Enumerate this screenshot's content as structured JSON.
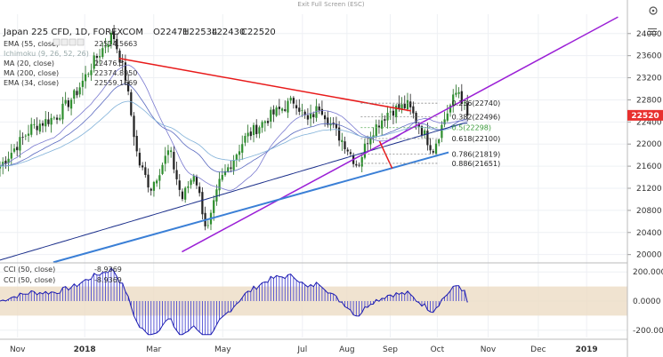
{
  "window": {
    "exit_fullscreen": "Exit Full Screen (ESC)"
  },
  "header": {
    "symbol": "Japan 225 CFD, 1D, FOREXCOM",
    "open": "O22471",
    "high": "H22534",
    "low": "L22430",
    "close": "C22520"
  },
  "legend": [
    {
      "label": "EMA (55, close)",
      "value": "22514.5663"
    },
    {
      "label": "Ichimoku (9, 26, 52, 26)",
      "value": ""
    },
    {
      "label": "MA (20, close)",
      "value": "22476.5"
    },
    {
      "label": "MA (200, close)",
      "value": "22374.8950"
    },
    {
      "label": "EMA (34, close)",
      "value": "22559.1669"
    }
  ],
  "cci_legend": [
    {
      "label": "CCI (50, close)",
      "value": "-8.9369"
    },
    {
      "label": "CCI (50, close)",
      "value": "-8.9369"
    }
  ],
  "price_badge": {
    "value": "22520",
    "color": "#e8302e"
  },
  "fib_labels": [
    {
      "text": "0.236(22740)",
      "value": 22740,
      "color": "#222222"
    },
    {
      "text": "0.382(22496)",
      "value": 22496,
      "color": "#222222"
    },
    {
      "text": "0.5(22298)",
      "value": 22298,
      "color": "#3a9a3a"
    },
    {
      "text": "0.618(22100)",
      "value": 22100,
      "color": "#222222"
    },
    {
      "text": "0.786(21819)",
      "value": 21819,
      "color": "#222222"
    },
    {
      "text": "0.886(21651)",
      "value": 21651,
      "color": "#222222"
    }
  ],
  "chart_data": [
    {
      "type": "candlestick",
      "title": "Japan 225 CFD, 1D, FOREXCOM",
      "y_ticks": [
        20000,
        20400,
        20800,
        21200,
        21600,
        22000,
        22400,
        22800,
        23200,
        23600,
        24000
      ],
      "ylim": [
        19850,
        24350
      ],
      "x_ticks": [
        "Nov",
        "2018",
        "Mar",
        "May",
        "Jul",
        "Aug",
        "Sep",
        "Oct",
        "Nov",
        "Dec",
        "2019"
      ],
      "last_price": 22520,
      "ohlc_last": {
        "open": 22471,
        "high": 22534,
        "low": 22430,
        "close": 22520
      },
      "close_path": [
        {
          "t": 0,
          "v": 21600
        },
        {
          "t": 0.05,
          "v": 22300
        },
        {
          "t": 0.09,
          "v": 22500
        },
        {
          "t": 0.12,
          "v": 22900
        },
        {
          "t": 0.15,
          "v": 23500
        },
        {
          "t": 0.18,
          "v": 24000
        },
        {
          "t": 0.2,
          "v": 23200
        },
        {
          "t": 0.22,
          "v": 21700
        },
        {
          "t": 0.24,
          "v": 21200
        },
        {
          "t": 0.27,
          "v": 21900
        },
        {
          "t": 0.29,
          "v": 21000
        },
        {
          "t": 0.31,
          "v": 21500
        },
        {
          "t": 0.33,
          "v": 20400
        },
        {
          "t": 0.35,
          "v": 21300
        },
        {
          "t": 0.39,
          "v": 22100
        },
        {
          "t": 0.43,
          "v": 22500
        },
        {
          "t": 0.47,
          "v": 22800
        },
        {
          "t": 0.49,
          "v": 22400
        },
        {
          "t": 0.51,
          "v": 22700
        },
        {
          "t": 0.53,
          "v": 22300
        },
        {
          "t": 0.55,
          "v": 22000
        },
        {
          "t": 0.57,
          "v": 21600
        },
        {
          "t": 0.59,
          "v": 22200
        },
        {
          "t": 0.62,
          "v": 22600
        },
        {
          "t": 0.65,
          "v": 22700
        },
        {
          "t": 0.67,
          "v": 22300
        },
        {
          "t": 0.69,
          "v": 21900
        },
        {
          "t": 0.71,
          "v": 22500
        },
        {
          "t": 0.73,
          "v": 23000
        },
        {
          "t": 0.745,
          "v": 22520
        }
      ],
      "annotations": {
        "fibonacci": [
          {
            "ratio": 0.236,
            "value": 22740
          },
          {
            "ratio": 0.382,
            "value": 22496
          },
          {
            "ratio": 0.5,
            "value": 22298
          },
          {
            "ratio": 0.618,
            "value": 22100
          },
          {
            "ratio": 0.786,
            "value": 21819
          },
          {
            "ratio": 0.886,
            "value": 21651
          }
        ],
        "trend_lines": [
          {
            "name": "resistance",
            "color": "#e81a1a"
          },
          {
            "name": "support",
            "color": "#9b1fd6"
          },
          {
            "name": "long-term",
            "color": "#3a7fd6"
          }
        ]
      }
    },
    {
      "type": "line",
      "title": "CCI (50, close)",
      "y_ticks": [
        200,
        0,
        -200
      ],
      "ylim": [
        -250,
        250
      ],
      "last_value": -8.9369,
      "band": [
        -100,
        100
      ]
    }
  ]
}
